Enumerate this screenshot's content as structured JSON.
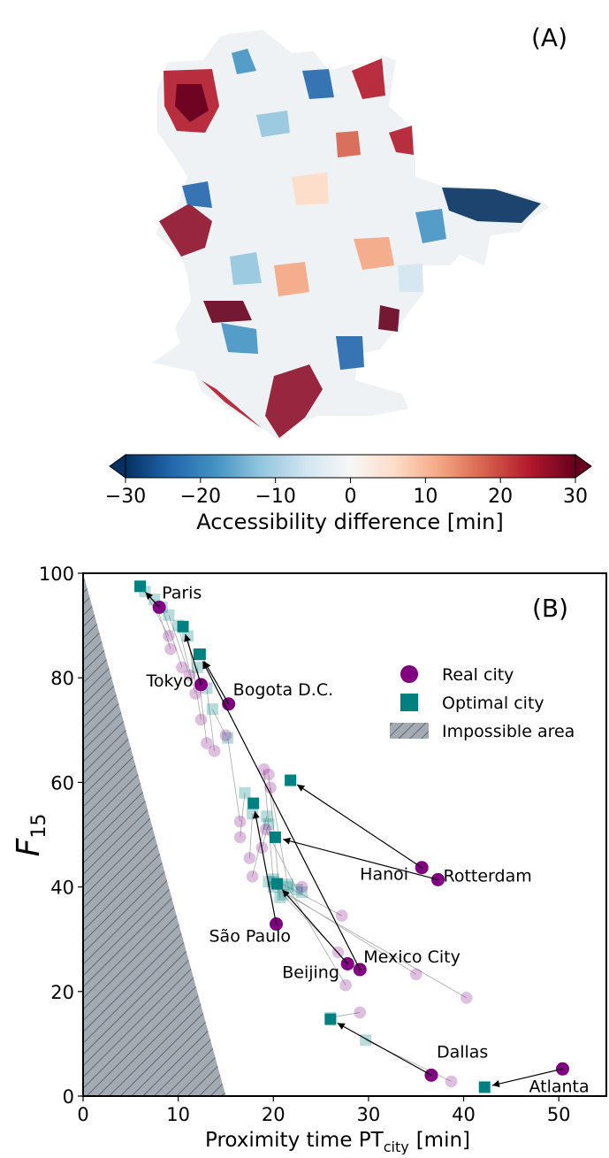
{
  "panel_a": {
    "label": "(A)",
    "colorbar": {
      "label": "Accessibility difference [min]",
      "ticks": [
        "−30",
        "−20",
        "−10",
        "0",
        "10",
        "20",
        "30"
      ],
      "range": [
        -30,
        30
      ],
      "colormap": "RdBu_r",
      "colors": [
        "#053061",
        "#2166ac",
        "#4393c3",
        "#92c5de",
        "#d1e5f0",
        "#f7f7f7",
        "#fddbc7",
        "#f4a582",
        "#d6604d",
        "#b2182b",
        "#67001f"
      ]
    }
  },
  "panel_b": {
    "label": "(B)"
  },
  "chart_data": {
    "type": "scatter",
    "title": "",
    "xlabel_main": "Proximity time PT",
    "xlabel_sub": "city",
    "xlabel_unit": "[min]",
    "ylabel_main": "F",
    "ylabel_sub": "15",
    "xlim": [
      0,
      55
    ],
    "ylim": [
      0,
      100
    ],
    "xticks": [
      "0",
      "10",
      "20",
      "30",
      "40",
      "50"
    ],
    "yticks": [
      "0",
      "20",
      "40",
      "60",
      "80",
      "100"
    ],
    "grid": false,
    "legend_position": "right",
    "legend": [
      {
        "label": "Real city",
        "marker": "circle",
        "color": "#800080"
      },
      {
        "label": "Optimal city",
        "marker": "square",
        "color": "#008080"
      },
      {
        "label": "Impossible area",
        "marker": "hatch",
        "color": "#4b5a6a"
      }
    ],
    "impossible_area": {
      "polygon": [
        [
          0,
          100
        ],
        [
          0,
          0
        ],
        [
          15,
          0
        ]
      ]
    },
    "labeled_cities": [
      {
        "name": "Paris",
        "real": [
          8.0,
          93.5
        ],
        "optimal": [
          6.0,
          97.5
        ]
      },
      {
        "name": "Tokyo",
        "real": [
          12.4,
          78.7
        ],
        "optimal": [
          10.5,
          89.8
        ]
      },
      {
        "name": "Bogota D.C.",
        "real": [
          15.3,
          75.0
        ],
        "optimal": [
          12.3,
          84.5
        ]
      },
      {
        "name": "Hanoi",
        "real": [
          35.6,
          43.7
        ],
        "optimal": [
          21.8,
          60.4
        ]
      },
      {
        "name": "Rotterdam",
        "real": [
          37.3,
          41.4
        ],
        "optimal": [
          20.2,
          49.5
        ]
      },
      {
        "name": "São Paulo",
        "real": [
          20.3,
          32.9
        ],
        "optimal": [
          17.9,
          56.0
        ]
      },
      {
        "name": "Beijing",
        "real": [
          27.8,
          25.3
        ],
        "optimal": [
          20.4,
          40.6
        ]
      },
      {
        "name": "Mexico City",
        "real": [
          29.1,
          24.2
        ],
        "optimal": [
          12.2,
          84.5
        ]
      },
      {
        "name": "Dallas",
        "real": [
          36.6,
          4.0
        ],
        "optimal": [
          26.0,
          14.7
        ]
      },
      {
        "name": "Atlanta",
        "real": [
          50.4,
          5.2
        ],
        "optimal": [
          42.2,
          1.7
        ]
      }
    ],
    "other_cities": [
      {
        "real": [
          9.0,
          88.0
        ],
        "optimal": [
          6.5,
          96.5
        ]
      },
      {
        "real": [
          9.2,
          85.5
        ],
        "optimal": [
          7.5,
          95.0
        ]
      },
      {
        "real": [
          10.4,
          82.0
        ],
        "optimal": [
          8.3,
          93.5
        ]
      },
      {
        "real": [
          11.2,
          80.5
        ],
        "optimal": [
          9.0,
          92.0
        ]
      },
      {
        "real": [
          11.8,
          77.0
        ],
        "optimal": [
          10.0,
          90.0
        ]
      },
      {
        "real": [
          12.4,
          72.0
        ],
        "optimal": [
          11.0,
          88.0
        ]
      },
      {
        "real": [
          13.0,
          67.5
        ],
        "optimal": [
          12.0,
          82.0
        ]
      },
      {
        "real": [
          13.8,
          66.0
        ],
        "optimal": [
          13.0,
          78.0
        ]
      },
      {
        "real": [
          15.0,
          69.0
        ],
        "optimal": [
          13.6,
          74.0
        ]
      },
      {
        "real": [
          16.5,
          52.5
        ],
        "optimal": [
          15.2,
          68.5
        ]
      },
      {
        "real": [
          16.5,
          49.5
        ],
        "optimal": [
          17.0,
          58.0
        ]
      },
      {
        "real": [
          17.5,
          45.5
        ],
        "optimal": [
          17.8,
          54.0
        ]
      },
      {
        "real": [
          17.8,
          42.0
        ],
        "optimal": [
          19.3,
          53.5
        ]
      },
      {
        "real": [
          18.8,
          47.5
        ],
        "optimal": [
          19.5,
          52.0
        ]
      },
      {
        "real": [
          19.0,
          62.5
        ],
        "optimal": [
          20.0,
          41.0
        ]
      },
      {
        "real": [
          19.5,
          61.5
        ],
        "optimal": [
          20.7,
          38.0
        ]
      },
      {
        "real": [
          19.7,
          59.0
        ],
        "optimal": [
          21.5,
          40.5
        ]
      },
      {
        "real": [
          19.2,
          51.0
        ],
        "optimal": [
          22.5,
          39.5
        ]
      },
      {
        "real": [
          23.0,
          40.0
        ],
        "optimal": [
          23.0,
          39.0
        ]
      },
      {
        "real": [
          27.2,
          34.5
        ],
        "optimal": [
          20.0,
          41.5
        ]
      },
      {
        "real": [
          26.8,
          27.5
        ],
        "optimal": [
          21.0,
          38.5
        ]
      },
      {
        "real": [
          27.6,
          21.2
        ],
        "optimal": [
          21.5,
          40.0
        ]
      },
      {
        "real": [
          29.1,
          16.0
        ],
        "optimal": [
          26.0,
          15.0
        ]
      },
      {
        "real": [
          35.0,
          23.3
        ],
        "optimal": [
          19.5,
          41.0
        ]
      },
      {
        "real": [
          40.3,
          18.8
        ],
        "optimal": [
          20.0,
          40.0
        ]
      },
      {
        "real": [
          38.7,
          2.8
        ],
        "optimal": [
          29.7,
          10.7
        ]
      }
    ]
  }
}
